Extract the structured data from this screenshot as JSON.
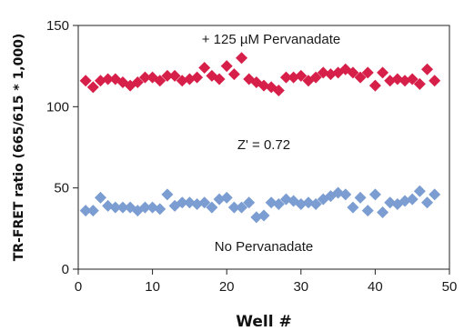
{
  "chart_data": {
    "type": "scatter",
    "title": "",
    "xlabel": "Well #",
    "ylabel": "TR-FRET ratio (665/615 * 1,000)",
    "xlim": [
      0,
      50
    ],
    "ylim": [
      0,
      150
    ],
    "x_ticks": [
      "0",
      "10",
      "20",
      "30",
      "40",
      "50"
    ],
    "y_ticks": [
      "0",
      "50",
      "100",
      "150"
    ],
    "grid": false,
    "legend": "none",
    "annotations": {
      "top": "+ 125 µM  Pervanadate",
      "middle": "Z' = 0.72",
      "bottom": "No Pervanadate"
    },
    "series": [
      {
        "color": "#d6204a",
        "marker": "diamond",
        "x": [
          1,
          2,
          3,
          4,
          5,
          6,
          7,
          8,
          9,
          10,
          11,
          12,
          13,
          14,
          15,
          16,
          17,
          18,
          19,
          20,
          21,
          22,
          23,
          24,
          25,
          26,
          27,
          28,
          29,
          30,
          31,
          32,
          33,
          34,
          35,
          36,
          37,
          38,
          39,
          40,
          41,
          42,
          43,
          44,
          45,
          46,
          47,
          48
        ],
        "y": [
          116,
          112,
          116,
          117,
          117,
          115,
          113,
          115,
          118,
          118,
          116,
          119,
          119,
          116,
          117,
          118,
          124,
          119,
          117,
          125,
          120,
          130,
          117,
          115,
          113,
          112,
          110,
          118,
          118,
          119,
          116,
          118,
          121,
          120,
          121,
          123,
          121,
          118,
          121,
          113,
          121,
          116,
          117,
          116,
          117,
          114,
          123,
          116
        ]
      },
      {
        "color": "#7b9dd1",
        "marker": "diamond",
        "x": [
          1,
          2,
          3,
          4,
          5,
          6,
          7,
          8,
          9,
          10,
          11,
          12,
          13,
          14,
          15,
          16,
          17,
          18,
          19,
          20,
          21,
          22,
          23,
          24,
          25,
          26,
          27,
          28,
          29,
          30,
          31,
          32,
          33,
          34,
          35,
          36,
          37,
          38,
          39,
          40,
          41,
          42,
          43,
          44,
          45,
          46,
          47,
          48
        ],
        "y": [
          36,
          36,
          44,
          39,
          38,
          38,
          38,
          36,
          38,
          38,
          37,
          46,
          39,
          41,
          41,
          40,
          41,
          38,
          43,
          44,
          38,
          38,
          41,
          32,
          33,
          41,
          40,
          43,
          42,
          40,
          41,
          40,
          43,
          45,
          47,
          46,
          38,
          44,
          36,
          46,
          35,
          41,
          40,
          42,
          43,
          48,
          41,
          46
        ]
      }
    ]
  }
}
